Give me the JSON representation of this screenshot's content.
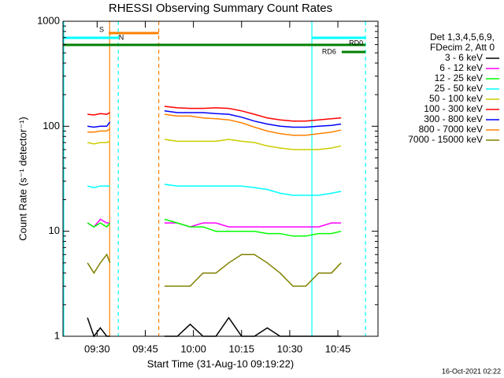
{
  "chart_data": {
    "type": "line",
    "title": "RHESSI Observing Summary Count Rates",
    "xlabel": "Start Time (31-Aug-10 09:19:22)",
    "ylabel": "Count Rate (s⁻¹ detector⁻¹)",
    "legend_title": [
      "Det 1,3,4,5,6,9,",
      "FDecim 2, Att 0"
    ],
    "footer": "16-Oct-2021 02:22",
    "log_y": true,
    "xlim": [
      559.37,
      657.5
    ],
    "ylim": [
      1,
      1000
    ],
    "xticks": [
      {
        "value": 570,
        "label": "09:30"
      },
      {
        "value": 585,
        "label": "09:45"
      },
      {
        "value": 600,
        "label": "10:00"
      },
      {
        "value": 615,
        "label": "10:15"
      },
      {
        "value": 630,
        "label": "10:30"
      },
      {
        "value": 645,
        "label": "10:45"
      }
    ],
    "yticks": [
      1,
      10,
      100,
      1000
    ],
    "x": [
      567,
      569,
      571,
      573,
      574,
      582,
      591,
      595,
      599,
      603,
      607,
      611,
      615,
      619,
      623,
      627,
      631,
      635,
      639,
      643,
      646
    ],
    "series": [
      {
        "name": "3 - 6 keV",
        "color": "#000000",
        "values": [
          1.5,
          1,
          1.2,
          1,
          1,
          null,
          1,
          1,
          1.3,
          1,
          1,
          1.5,
          1,
          1,
          1.2,
          1,
          1,
          1,
          1,
          1,
          1
        ]
      },
      {
        "name": "6 - 12 keV",
        "color": "#ff00ff",
        "values": [
          12,
          11,
          13,
          12,
          12,
          null,
          12,
          12,
          11,
          12,
          12,
          11,
          11,
          11,
          11,
          11,
          11,
          11,
          11,
          12,
          12
        ]
      },
      {
        "name": "12 - 25 keV",
        "color": "#00ff00",
        "values": [
          12,
          11,
          12,
          11,
          12,
          null,
          13,
          12,
          11,
          11,
          10,
          10,
          10,
          10,
          9.5,
          9.5,
          9,
          9,
          9.5,
          9.5,
          10
        ]
      },
      {
        "name": "25 - 50 keV",
        "color": "#00ffff",
        "values": [
          27,
          26,
          27,
          27,
          27,
          null,
          28,
          27,
          27,
          27,
          27,
          27,
          27,
          26,
          25,
          23,
          22,
          22,
          22,
          23,
          24
        ]
      },
      {
        "name": "50 - 100 keV",
        "color": "#cccc00",
        "values": [
          70,
          68,
          70,
          70,
          72,
          null,
          75,
          72,
          72,
          72,
          72,
          75,
          72,
          70,
          65,
          62,
          60,
          60,
          60,
          62,
          65
        ]
      },
      {
        "name": "100 - 300 keV",
        "color": "#ff0000",
        "values": [
          130,
          128,
          132,
          130,
          135,
          null,
          155,
          150,
          148,
          148,
          150,
          148,
          140,
          130,
          120,
          115,
          112,
          112,
          115,
          118,
          120
        ]
      },
      {
        "name": "300 - 800 keV",
        "color": "#0000ff",
        "values": [
          100,
          98,
          100,
          100,
          110,
          null,
          140,
          135,
          135,
          135,
          132,
          130,
          122,
          112,
          105,
          100,
          98,
          98,
          100,
          102,
          105
        ]
      },
      {
        "name": "800 - 7000 keV",
        "color": "#ff8000",
        "values": [
          88,
          88,
          90,
          90,
          95,
          null,
          130,
          125,
          125,
          120,
          118,
          115,
          108,
          98,
          90,
          85,
          82,
          82,
          85,
          88,
          92
        ]
      },
      {
        "name": "7000 - 15000 keV",
        "color": "#808000",
        "values": [
          5,
          4,
          5,
          6,
          5,
          null,
          3,
          3,
          3,
          4,
          4,
          5,
          6,
          6,
          5,
          4,
          3,
          3,
          4,
          4,
          5
        ]
      }
    ],
    "flags": [
      {
        "label": "S",
        "color": "#ff8000",
        "segments": [
          [
            573.6,
            589.2
          ]
        ]
      },
      {
        "label": "N",
        "color": "#00ffff",
        "segments": [
          [
            559.37,
            576.6
          ],
          [
            636.9,
            653.6
          ]
        ]
      },
      {
        "label": "RD0",
        "color": "#008000",
        "segments": [
          [
            559.37,
            653.6
          ]
        ]
      },
      {
        "label": "RD6",
        "color": "#008000",
        "segments": [
          [
            646.2,
            653.6
          ]
        ]
      }
    ],
    "markers": [
      {
        "x": 559.6,
        "color": "#00ffff",
        "style": "solid"
      },
      {
        "x": 573.9,
        "color": "#ff8000",
        "style": "solid"
      },
      {
        "x": 576.6,
        "color": "#00ffff",
        "style": "dashed"
      },
      {
        "x": 589.2,
        "color": "#ff8000",
        "style": "dashed"
      },
      {
        "x": 636.9,
        "color": "#00ffff",
        "style": "solid"
      },
      {
        "x": 653.6,
        "color": "#00ffff",
        "style": "dashed"
      }
    ]
  }
}
